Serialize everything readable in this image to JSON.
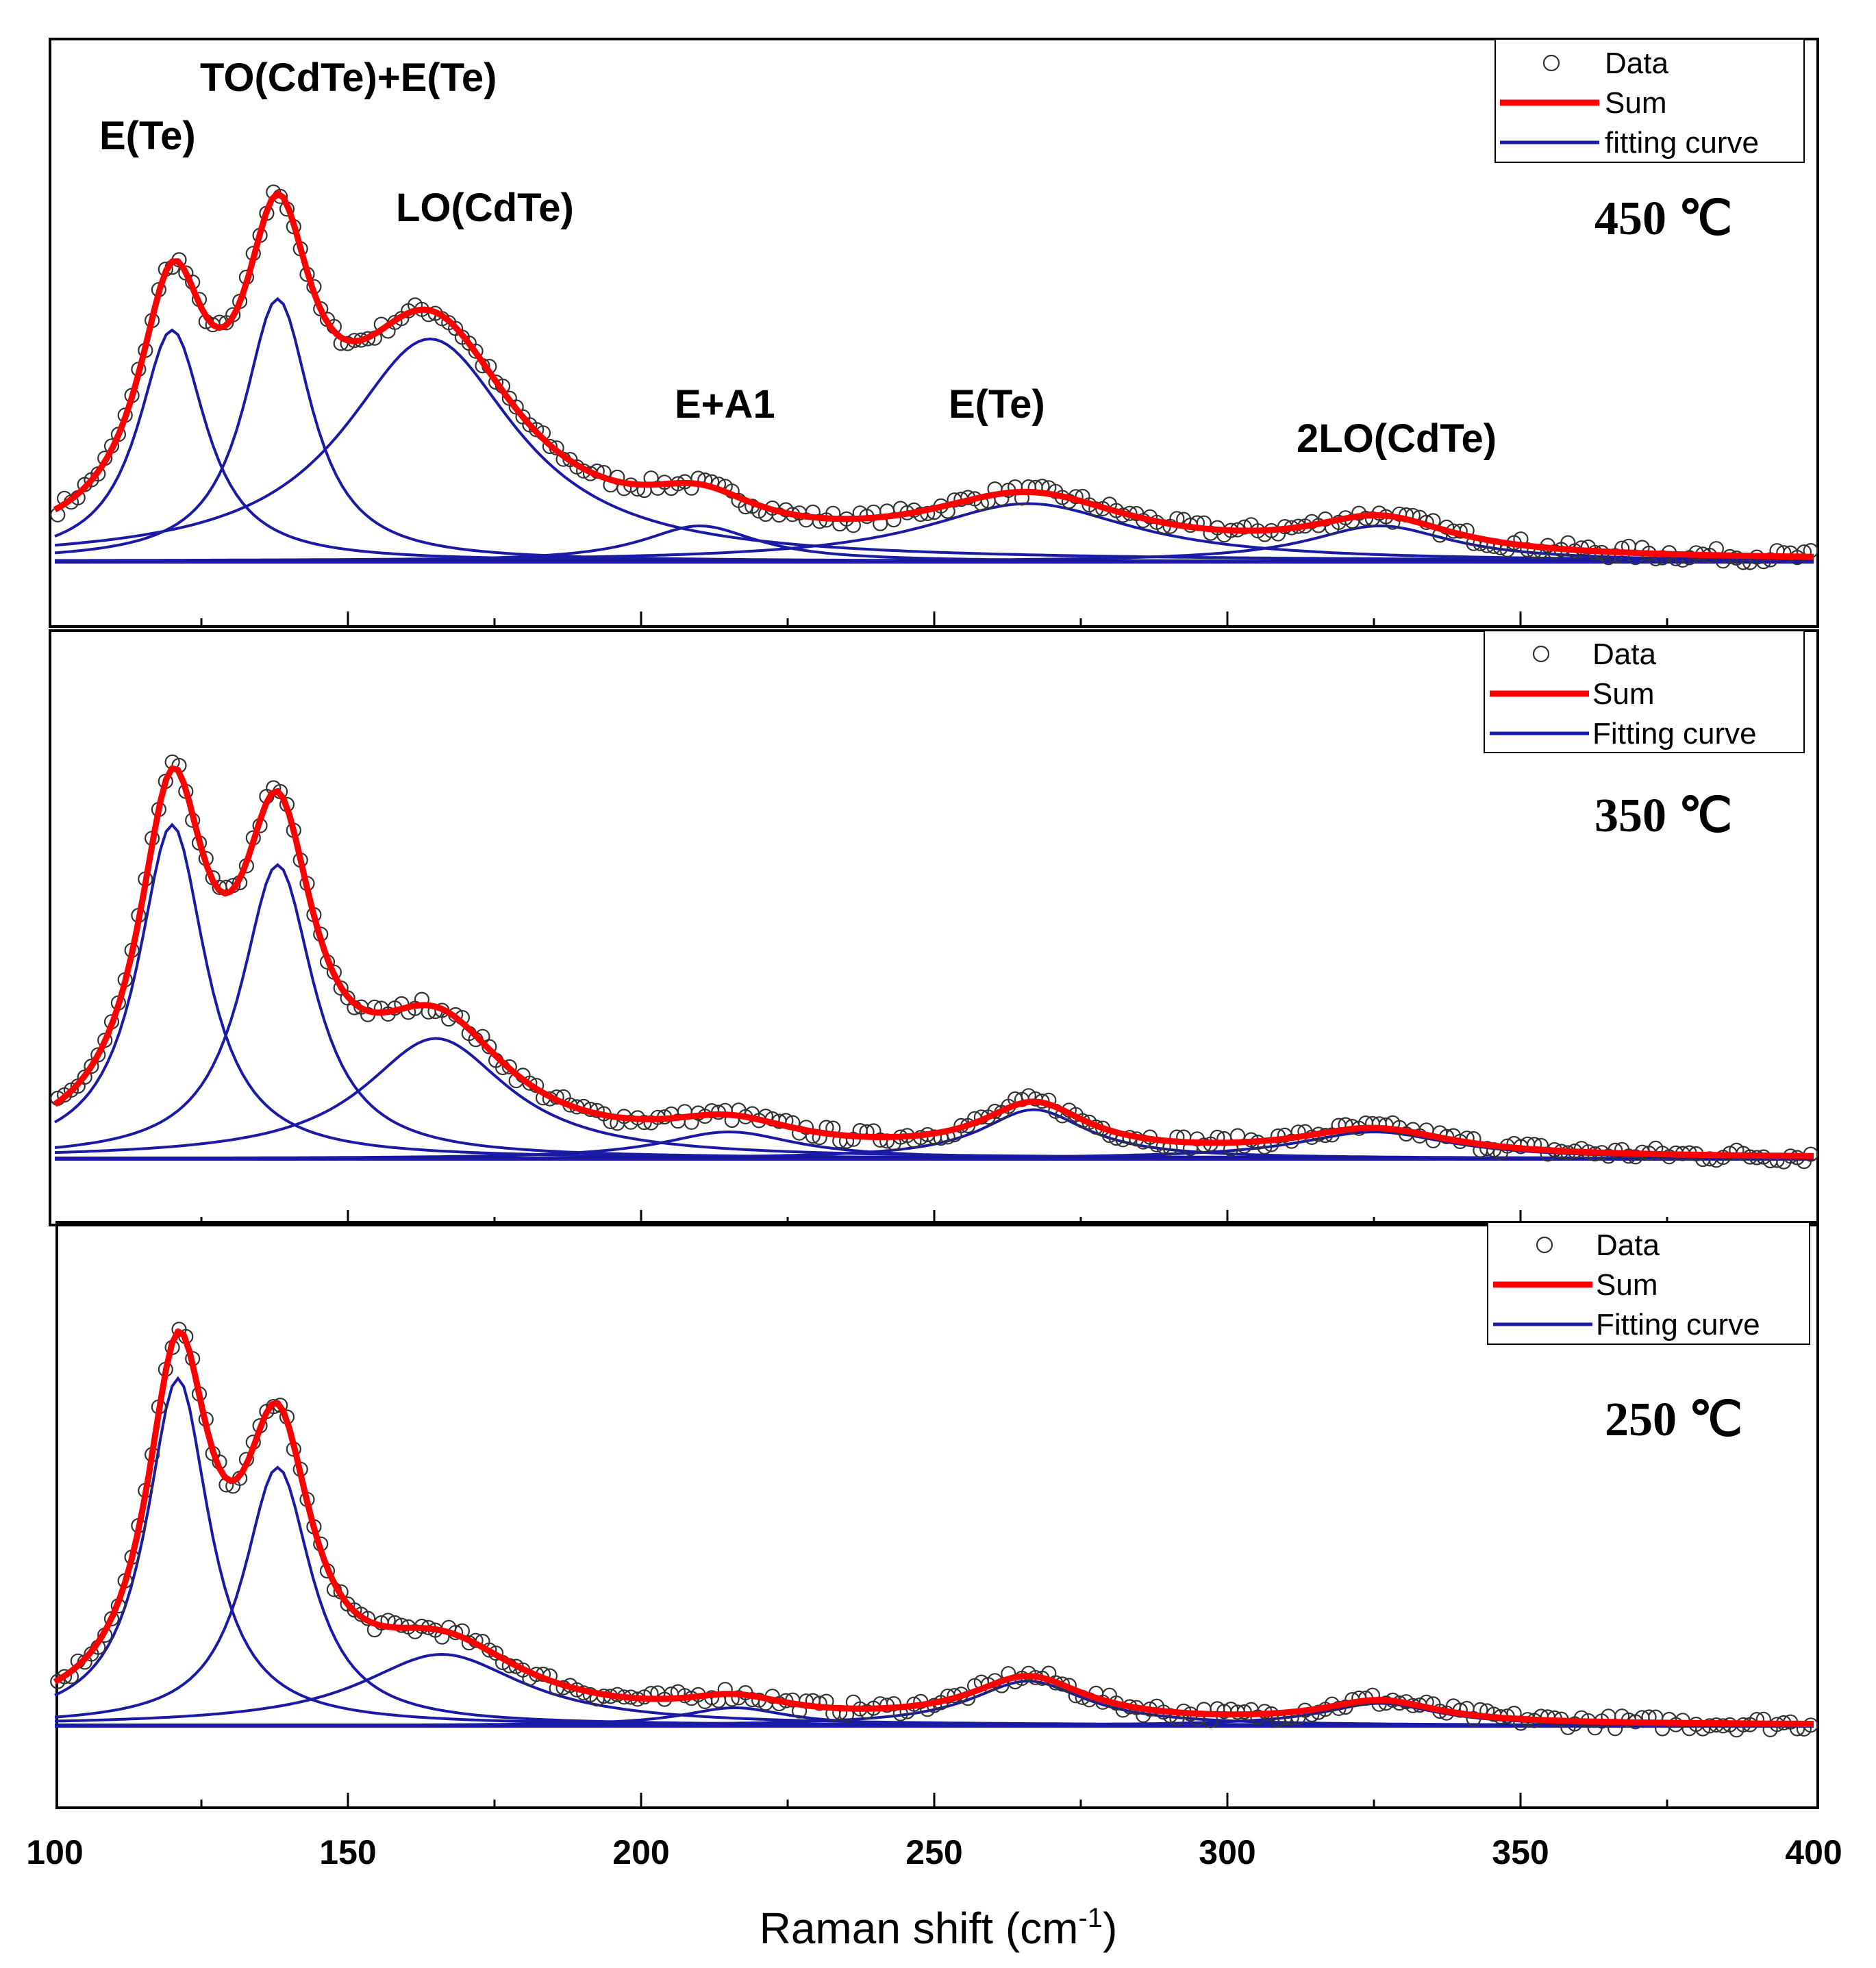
{
  "chart_data": {
    "type": "line",
    "description_axis": {
      "xlabel": "Raman shift (cm",
      "xlabel_sup": "-1",
      "xlabel_close": ")",
      "xlim": [
        100,
        400
      ],
      "xticks": [
        "100",
        "150",
        "200",
        "250",
        "300",
        "350",
        "400"
      ]
    },
    "peak_labels": [
      {
        "text": "E(Te)",
        "x": 120
      },
      {
        "text": "TO(CdTe)+E(Te)",
        "x": 140
      },
      {
        "text": "LO(CdTe)",
        "x": 165
      },
      {
        "text": "E+A1",
        "x": 212
      },
      {
        "text": "E(Te)",
        "x": 266
      },
      {
        "text": "2LO(CdTe)",
        "x": 327
      }
    ],
    "panels": [
      {
        "temperature": "450 ℃",
        "legend": [
          "Data",
          "Sum",
          "fitting curve"
        ],
        "peaks": [
          {
            "center": 120,
            "width": 7,
            "height": 0.52
          },
          {
            "center": 138,
            "width": 7,
            "height": 0.59
          },
          {
            "center": 164,
            "width": 18,
            "height": 0.5
          },
          {
            "center": 210,
            "width": 12,
            "height": 0.08
          },
          {
            "center": 266,
            "width": 22,
            "height": 0.13
          },
          {
            "center": 326,
            "width": 15,
            "height": 0.08
          }
        ]
      },
      {
        "temperature": "350 ℃",
        "legend": [
          "Data",
          "Sum",
          "Fitting curve"
        ],
        "peaks": [
          {
            "center": 120,
            "width": 7,
            "height": 0.75
          },
          {
            "center": 138,
            "width": 7.5,
            "height": 0.66
          },
          {
            "center": 165,
            "width": 15,
            "height": 0.27
          },
          {
            "center": 215,
            "width": 14,
            "height": 0.06
          },
          {
            "center": 267,
            "width": 11,
            "height": 0.11
          },
          {
            "center": 325,
            "width": 16,
            "height": 0.06
          }
        ]
      },
      {
        "temperature": "250 ℃",
        "legend": [
          "Data",
          "Sum",
          "Fitting curve"
        ],
        "peaks": [
          {
            "center": 121,
            "width": 6.5,
            "height": 0.78
          },
          {
            "center": 138,
            "width": 7,
            "height": 0.58
          },
          {
            "center": 166,
            "width": 17,
            "height": 0.16
          },
          {
            "center": 216,
            "width": 11,
            "height": 0.04
          },
          {
            "center": 266,
            "width": 12,
            "height": 0.1
          },
          {
            "center": 326,
            "width": 12,
            "height": 0.05
          }
        ]
      }
    ]
  }
}
